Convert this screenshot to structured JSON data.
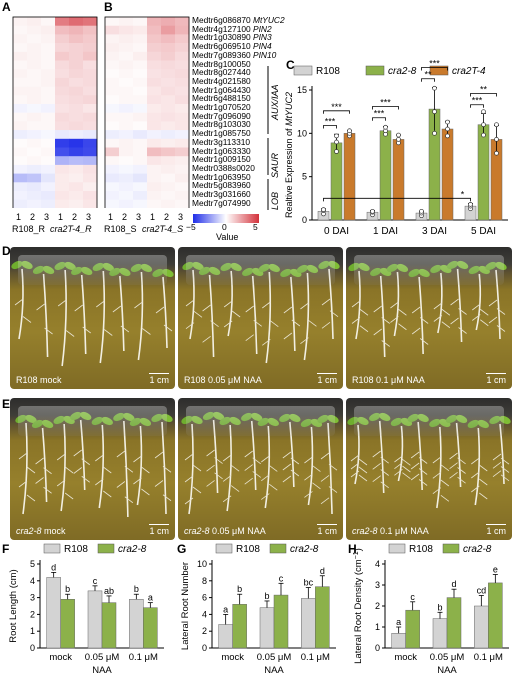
{
  "panel_labels": {
    "A": "A",
    "B": "B",
    "C": "C",
    "D": "D",
    "E": "E",
    "F": "F",
    "G": "G",
    "H": "H"
  },
  "heatmap": {
    "genes": [
      {
        "id": "Medtr6g086870",
        "symbol": "MtYUC2"
      },
      {
        "id": "Medtr4g127100",
        "symbol": "PIN2"
      },
      {
        "id": "Medtr1g030890",
        "symbol": "PIN3"
      },
      {
        "id": "Medtr6g069510",
        "symbol": "PIN4"
      },
      {
        "id": "Medtr7g089360",
        "symbol": "PIN10"
      },
      {
        "id": "Medtr8g100050",
        "symbol": ""
      },
      {
        "id": "Medtr8g027440",
        "symbol": ""
      },
      {
        "id": "Medtr4g021580",
        "symbol": ""
      },
      {
        "id": "Medtr1g064430",
        "symbol": ""
      },
      {
        "id": "Medtr6g488150",
        "symbol": ""
      },
      {
        "id": "Medtr1g070520",
        "symbol": ""
      },
      {
        "id": "Medtr7g096090",
        "symbol": ""
      },
      {
        "id": "Medtr8g103030",
        "symbol": ""
      },
      {
        "id": "Medtr1g085750",
        "symbol": ""
      },
      {
        "id": "Medtr3g113310",
        "symbol": ""
      },
      {
        "id": "Medtr1g063330",
        "symbol": ""
      },
      {
        "id": "Medtr1g009150",
        "symbol": ""
      },
      {
        "id": "Medtr0388s0020",
        "symbol": ""
      },
      {
        "id": "Medtr1g063950",
        "symbol": ""
      },
      {
        "id": "Medtr5g083960",
        "symbol": ""
      },
      {
        "id": "Medtr3g031660",
        "symbol": ""
      },
      {
        "id": "Medtr7g074990",
        "symbol": ""
      }
    ],
    "groups": [
      "AUX/IAA",
      "SAUR",
      "LOB"
    ],
    "replicates": [
      "1",
      "2",
      "3",
      "1",
      "2",
      "3"
    ],
    "panelA_samples": [
      "R108_R",
      "cra2T-4_R"
    ],
    "panelB_samples": [
      "R108_S",
      "cra2T-4_S"
    ],
    "colorbar": {
      "min": -5,
      "max": 5,
      "ticks": [
        "−5",
        "0",
        "5"
      ],
      "label": "Value",
      "low_color": "#1f2de8",
      "mid_color": "#ffffff",
      "high_color": "#d3323b"
    },
    "matrixA": [
      [
        0.3,
        0.4,
        0.2,
        3.2,
        3.6,
        3.4
      ],
      [
        0.2,
        0.3,
        0.4,
        1.6,
        1.8,
        1.5
      ],
      [
        0.3,
        0.2,
        0.3,
        1.2,
        1.5,
        1.3
      ],
      [
        0.2,
        0.3,
        0.2,
        1.0,
        1.1,
        1.2
      ],
      [
        0.4,
        0.3,
        0.2,
        1.3,
        1.1,
        1.4
      ],
      [
        0.2,
        0.3,
        0.2,
        0.9,
        1.1,
        0.8
      ],
      [
        0.3,
        0.2,
        0.3,
        0.8,
        1.0,
        0.9
      ],
      [
        0.2,
        0.2,
        0.3,
        1.0,
        0.8,
        0.9
      ],
      [
        0.3,
        0.3,
        0.2,
        0.9,
        1.0,
        0.8
      ],
      [
        0.2,
        0.3,
        0.2,
        0.8,
        0.9,
        1.0
      ],
      [
        -0.3,
        -0.2,
        -0.3,
        0.7,
        0.8,
        0.6
      ],
      [
        0.2,
        0.3,
        0.2,
        0.9,
        0.8,
        0.9
      ],
      [
        0.3,
        0.2,
        0.2,
        0.8,
        0.9,
        0.8
      ],
      [
        -0.4,
        -0.3,
        -0.2,
        -0.5,
        -0.4,
        -0.5
      ],
      [
        0.1,
        0.2,
        0.1,
        -4.6,
        -4.8,
        -4.4
      ],
      [
        0.2,
        0.1,
        0.2,
        -4.2,
        -4.5,
        -4.3
      ],
      [
        0.1,
        0.2,
        0.1,
        -1.8,
        -1.6,
        -1.7
      ],
      [
        -0.3,
        -0.4,
        -0.3,
        0.6,
        0.5,
        0.7
      ],
      [
        -1.6,
        -1.4,
        -0.6,
        0.5,
        0.4,
        0.6
      ],
      [
        -0.4,
        -0.5,
        -0.3,
        0.5,
        0.6,
        0.4
      ],
      [
        -0.3,
        -0.4,
        -0.5,
        0.6,
        0.5,
        0.7
      ],
      [
        -0.4,
        -0.3,
        -0.4,
        0.5,
        0.4,
        0.6
      ]
    ],
    "matrixB": [
      [
        0.2,
        0.3,
        0.2,
        1.8,
        2.0,
        1.7
      ],
      [
        0.8,
        0.6,
        0.5,
        1.6,
        2.4,
        1.8
      ],
      [
        0.3,
        0.4,
        0.3,
        1.4,
        1.6,
        1.3
      ],
      [
        0.4,
        0.3,
        0.2,
        1.2,
        1.3,
        1.1
      ],
      [
        0.3,
        0.2,
        0.4,
        1.0,
        1.2,
        0.9
      ],
      [
        0.2,
        0.3,
        0.2,
        0.8,
        0.9,
        0.8
      ],
      [
        0.1,
        0.2,
        0.1,
        0.7,
        0.8,
        0.9
      ],
      [
        0.2,
        0.1,
        0.2,
        0.8,
        0.7,
        0.8
      ],
      [
        0.2,
        0.2,
        0.1,
        0.6,
        0.8,
        0.7
      ],
      [
        0.1,
        0.2,
        0.2,
        0.7,
        0.6,
        0.8
      ],
      [
        -0.2,
        -0.3,
        -0.2,
        0.5,
        0.6,
        0.5
      ],
      [
        0.2,
        0.2,
        0.3,
        0.6,
        0.7,
        0.6
      ],
      [
        0.1,
        0.2,
        0.1,
        0.6,
        0.5,
        0.6
      ],
      [
        -0.4,
        -0.3,
        -0.5,
        -0.3,
        -0.4,
        -0.3
      ],
      [
        0.2,
        0.3,
        0.2,
        0.5,
        0.4,
        0.5
      ],
      [
        1.2,
        0.3,
        0.2,
        1.6,
        1.4,
        1.2
      ],
      [
        0.2,
        0.1,
        0.2,
        0.6,
        0.5,
        0.4
      ],
      [
        -0.3,
        -0.2,
        -0.3,
        0.3,
        0.4,
        0.3
      ],
      [
        -0.5,
        -0.4,
        -0.6,
        0.3,
        0.2,
        0.4
      ],
      [
        -0.2,
        -0.3,
        -0.2,
        0.4,
        0.3,
        0.2
      ],
      [
        -0.3,
        -0.2,
        -0.4,
        0.3,
        0.2,
        0.3
      ],
      [
        -0.2,
        -0.3,
        -0.2,
        0.2,
        0.3,
        0.2
      ]
    ]
  },
  "chart_data": [
    {
      "panel": "C",
      "type": "bar",
      "ylabel_prefix": "Realtive Expression of ",
      "ylabel_gene": "MtYUC2",
      "categories": [
        "0 DAI",
        "1 DAI",
        "3 DAI",
        "5 DAI"
      ],
      "ylim": [
        0,
        15
      ],
      "yticks": [
        "0",
        "5",
        "10",
        "15"
      ],
      "series": [
        {
          "name": "R108",
          "color": "#d3d3d3",
          "values": [
            1.0,
            0.9,
            0.8,
            1.6
          ],
          "errors": [
            0.3,
            0.2,
            0.2,
            0.3
          ],
          "points": [
            [
              0.7,
              1.1,
              1.2
            ],
            [
              0.6,
              0.9,
              1.0
            ],
            [
              0.5,
              0.8,
              1.0
            ],
            [
              1.3,
              1.6,
              1.8
            ]
          ]
        },
        {
          "name": "cra2-8",
          "color": "#8cb14a",
          "values": [
            8.9,
            10.3,
            12.8,
            11.0
          ],
          "errors": [
            1.0,
            0.5,
            2.5,
            1.3
          ],
          "points": [
            [
              7.9,
              9.0,
              9.7
            ],
            [
              9.9,
              10.3,
              10.7
            ],
            [
              10.0,
              12.5,
              15.2
            ],
            [
              9.8,
              11.0,
              12.5
            ]
          ]
        },
        {
          "name": "cra2T-4",
          "color": "#c97a2c",
          "values": [
            10.0,
            9.3,
            10.5,
            9.3
          ],
          "errors": [
            0.3,
            0.5,
            0.9,
            1.6
          ],
          "points": [
            [
              9.7,
              10.0,
              10.3
            ],
            [
              8.9,
              9.3,
              9.8
            ],
            [
              9.7,
              10.5,
              11.3
            ],
            [
              7.7,
              9.3,
              11.0
            ]
          ]
        }
      ],
      "significance": [
        {
          "label": "***",
          "group": 0,
          "a": 0,
          "b": 1
        },
        {
          "label": "***",
          "group": 0,
          "a": 0,
          "b": 2
        },
        {
          "label": "***",
          "group": 1,
          "a": 0,
          "b": 1
        },
        {
          "label": "***",
          "group": 1,
          "a": 0,
          "b": 2
        },
        {
          "label": "**",
          "group": 2,
          "a": 0,
          "b": 1
        },
        {
          "label": "***",
          "group": 2,
          "a": 0,
          "b": 2
        },
        {
          "label": "***",
          "group": 3,
          "a": 0,
          "b": 1
        },
        {
          "label": "**",
          "group": 3,
          "a": 0,
          "b": 2
        }
      ],
      "r108_bracket_label": "*"
    },
    {
      "panel": "F",
      "type": "bar",
      "ylabel": "Root Length (cm)",
      "xlabel": "NAA",
      "categories": [
        "mock",
        "0.05 μM",
        "0.1 μM"
      ],
      "ylim": [
        0,
        5
      ],
      "yticks": [
        "0",
        "1",
        "2",
        "3",
        "4",
        "5"
      ],
      "series": [
        {
          "name": "R108",
          "color": "#d3d3d3",
          "values": [
            4.2,
            3.4,
            2.9
          ],
          "errors": [
            0.3,
            0.3,
            0.3
          ],
          "letters": [
            "d",
            "c",
            "b"
          ]
        },
        {
          "name": "cra2-8",
          "color": "#8cb14a",
          "values": [
            2.9,
            2.7,
            2.4
          ],
          "errors": [
            0.3,
            0.4,
            0.3
          ],
          "letters": [
            "b",
            "ab",
            "a"
          ]
        }
      ]
    },
    {
      "panel": "G",
      "type": "bar",
      "ylabel": "Lateral Root Number",
      "xlabel": "NAA",
      "categories": [
        "mock",
        "0.05 μM",
        "0.1 μM"
      ],
      "ylim": [
        0,
        10
      ],
      "yticks": [
        "0",
        "2",
        "4",
        "6",
        "8",
        "10"
      ],
      "series": [
        {
          "name": "R108",
          "color": "#d3d3d3",
          "values": [
            2.8,
            4.8,
            5.9
          ],
          "errors": [
            1.2,
            0.8,
            1.3
          ],
          "letters": [
            "a",
            "b",
            "bc"
          ]
        },
        {
          "name": "cra2-8",
          "color": "#8cb14a",
          "values": [
            5.2,
            6.3,
            7.3
          ],
          "errors": [
            1.2,
            1.4,
            1.3
          ],
          "letters": [
            "b",
            "c",
            "d"
          ]
        }
      ]
    },
    {
      "panel": "H",
      "type": "bar",
      "ylabel": "Lateral Root Density (cm",
      "ylabel_sup": "−1",
      "ylabel_suffix": ")",
      "xlabel": "NAA",
      "categories": [
        "mock",
        "0.05 μM",
        "0.1 μM"
      ],
      "ylim": [
        0,
        4
      ],
      "yticks": [
        "0",
        "1",
        "2",
        "3",
        "4"
      ],
      "series": [
        {
          "name": "R108",
          "color": "#d3d3d3",
          "values": [
            0.7,
            1.4,
            2.0
          ],
          "errors": [
            0.3,
            0.3,
            0.5
          ],
          "letters": [
            "a",
            "b",
            "cd"
          ]
        },
        {
          "name": "cra2-8",
          "color": "#8cb14a",
          "values": [
            1.8,
            2.4,
            3.1
          ],
          "errors": [
            0.4,
            0.4,
            0.4
          ],
          "letters": [
            "c",
            "d",
            "e"
          ]
        }
      ]
    }
  ],
  "photos": [
    {
      "caption": "R108 mock",
      "scale": "1 cm"
    },
    {
      "caption": "R108 0.05 μM NAA",
      "scale": "1 cm"
    },
    {
      "caption": "R108 0.1 μM NAA",
      "scale": "1 cm"
    },
    {
      "caption_italic": "cra2-8",
      "caption": " mock",
      "scale": "1 cm"
    },
    {
      "caption_italic": "cra2-8",
      "caption": " 0.05 μM NAA",
      "scale": "1 cm"
    },
    {
      "caption_italic": "cra2-8",
      "caption": " 0.1 μM NAA",
      "scale": "1 cm"
    }
  ]
}
